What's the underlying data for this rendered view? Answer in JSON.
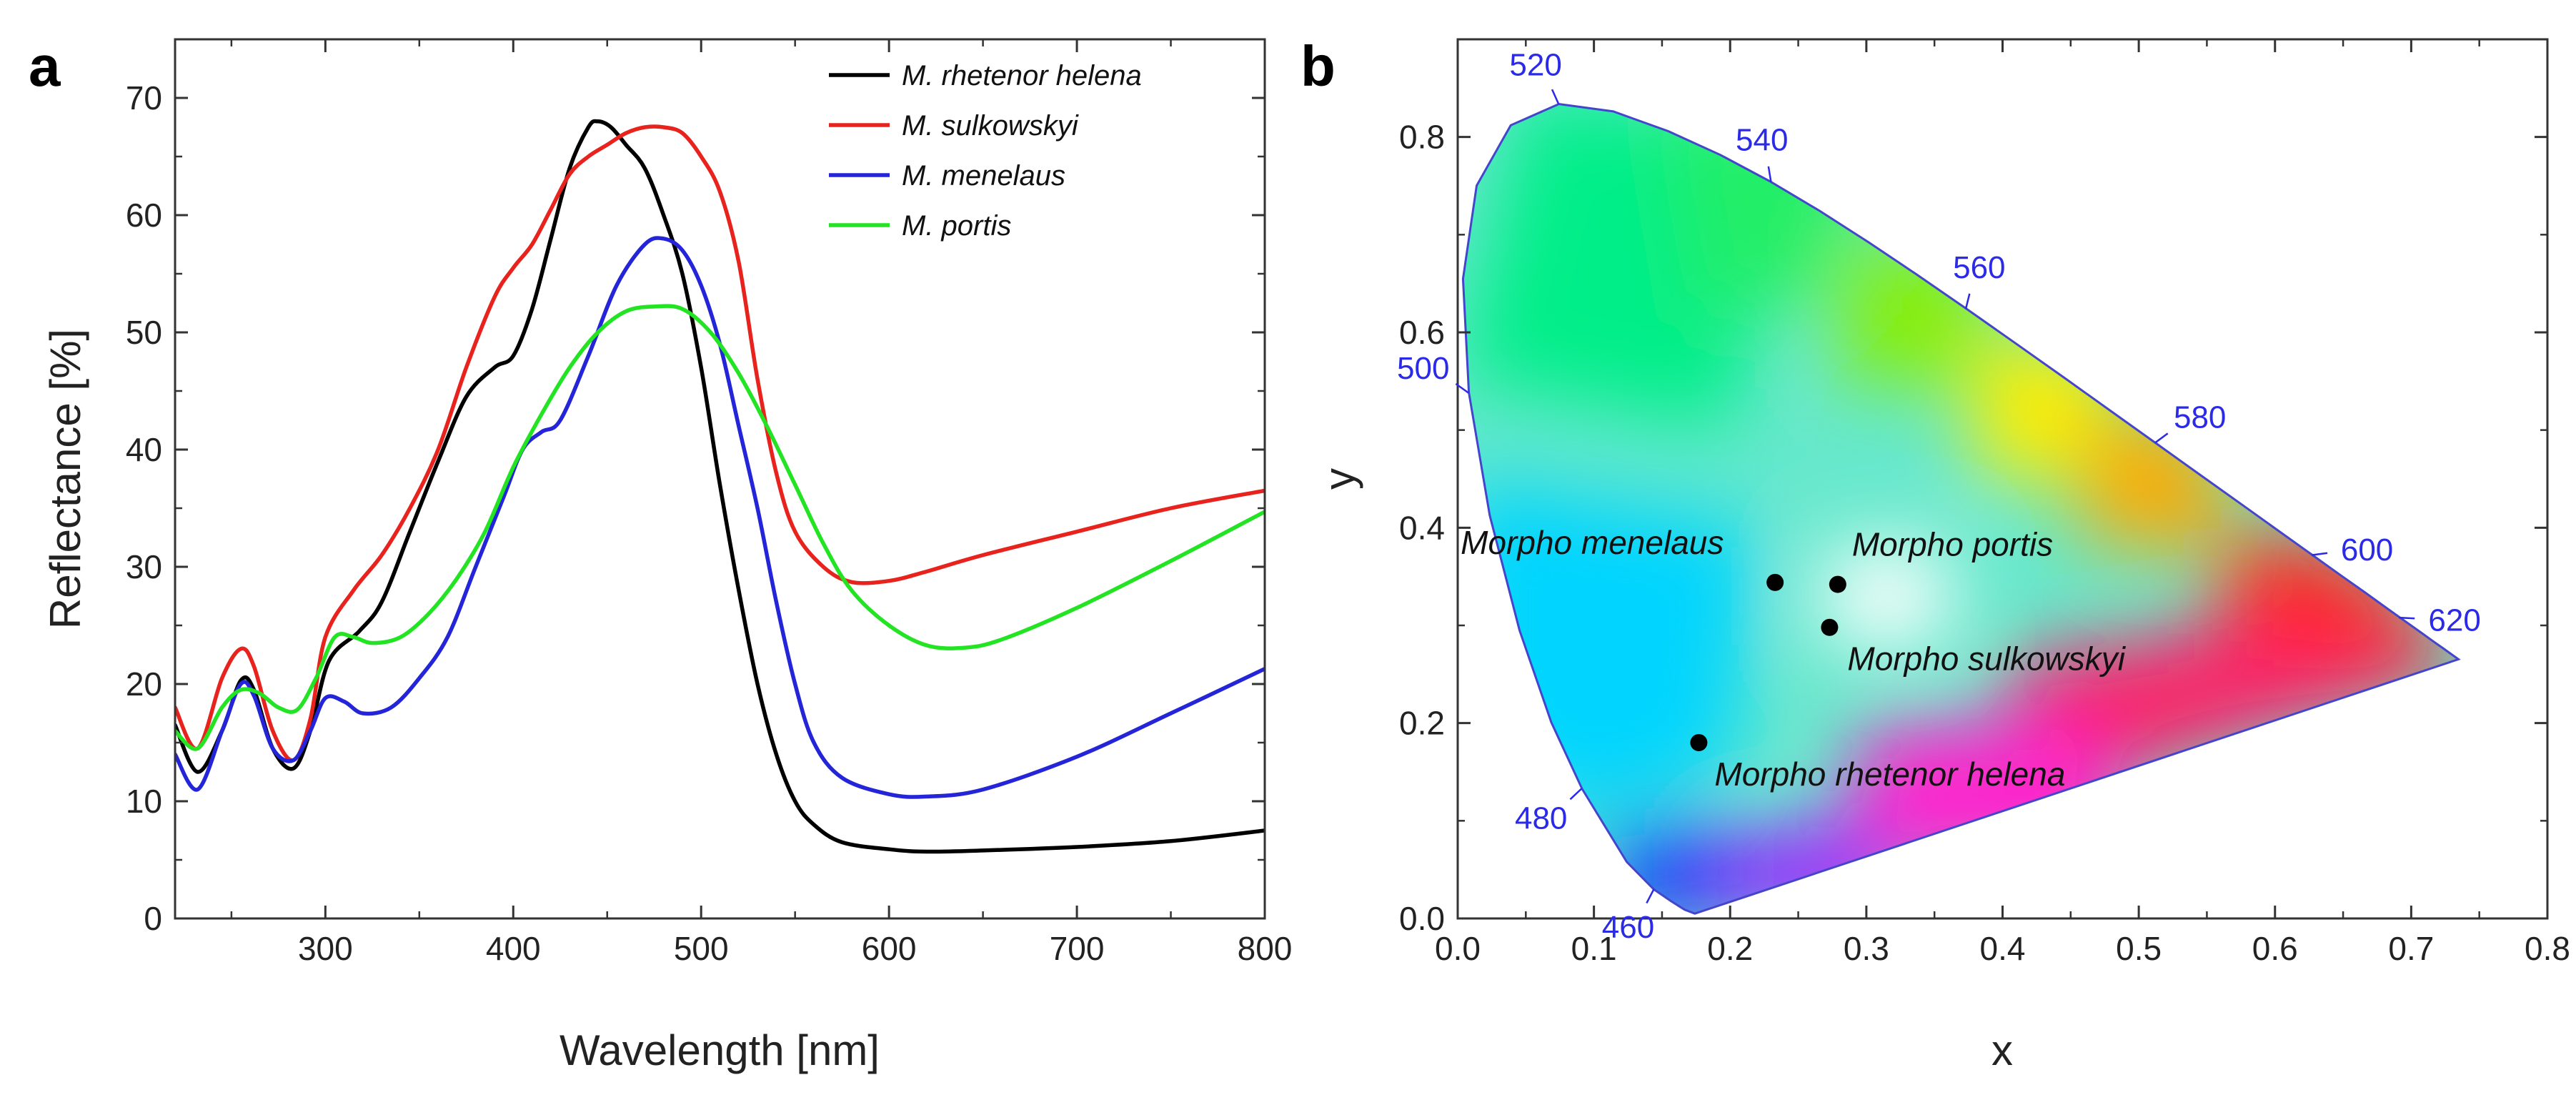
{
  "chart_data": [
    {
      "panel": "a",
      "type": "line",
      "title": "",
      "xlabel": "Wavelength [nm]",
      "ylabel": "Reflectance [%]",
      "xlim": [
        220,
        800
      ],
      "ylim": [
        0,
        75
      ],
      "xticks": [
        300,
        400,
        500,
        600,
        700,
        800
      ],
      "yticks": [
        0,
        10,
        20,
        30,
        40,
        50,
        60,
        70
      ],
      "grid": false,
      "legend_position": "top-right",
      "series": [
        {
          "name": "M. rhetenor helena",
          "color": "#000000",
          "points": [
            [
              220,
              16.5
            ],
            [
              232,
              12.5
            ],
            [
              245,
              16
            ],
            [
              255,
              20.3
            ],
            [
              262,
              19.5
            ],
            [
              272,
              14.5
            ],
            [
              283,
              12.8
            ],
            [
              292,
              16
            ],
            [
              302,
              22
            ],
            [
              318,
              24.5
            ],
            [
              330,
              27
            ],
            [
              345,
              33
            ],
            [
              360,
              39
            ],
            [
              375,
              44.5
            ],
            [
              390,
              47
            ],
            [
              400,
              48
            ],
            [
              410,
              52
            ],
            [
              420,
              58
            ],
            [
              430,
              64
            ],
            [
              440,
              67.5
            ],
            [
              445,
              68
            ],
            [
              452,
              67.5
            ],
            [
              460,
              66
            ],
            [
              470,
              64
            ],
            [
              480,
              60
            ],
            [
              490,
              55
            ],
            [
              500,
              47
            ],
            [
              510,
              37
            ],
            [
              520,
              28
            ],
            [
              530,
              20
            ],
            [
              540,
              14
            ],
            [
              550,
              10
            ],
            [
              560,
              8
            ],
            [
              575,
              6.5
            ],
            [
              600,
              5.9
            ],
            [
              620,
              5.7
            ],
            [
              650,
              5.8
            ],
            [
              700,
              6.1
            ],
            [
              750,
              6.6
            ],
            [
              800,
              7.5
            ]
          ]
        },
        {
          "name": "M. sulkowskyi",
          "color": "#e8231e",
          "points": [
            [
              220,
              18
            ],
            [
              232,
              14.5
            ],
            [
              245,
              20.5
            ],
            [
              255,
              23
            ],
            [
              262,
              21.5
            ],
            [
              272,
              16
            ],
            [
              283,
              13.5
            ],
            [
              292,
              17
            ],
            [
              300,
              24
            ],
            [
              315,
              28
            ],
            [
              330,
              31
            ],
            [
              345,
              35
            ],
            [
              360,
              40
            ],
            [
              375,
              47
            ],
            [
              390,
              53
            ],
            [
              400,
              55.5
            ],
            [
              410,
              57.5
            ],
            [
              420,
              60.5
            ],
            [
              430,
              63.5
            ],
            [
              440,
              65
            ],
            [
              450,
              66
            ],
            [
              460,
              67
            ],
            [
              470,
              67.5
            ],
            [
              480,
              67.5
            ],
            [
              490,
              67
            ],
            [
              500,
              65
            ],
            [
              510,
              62
            ],
            [
              520,
              56
            ],
            [
              530,
              46
            ],
            [
              540,
              38
            ],
            [
              550,
              33
            ],
            [
              565,
              30
            ],
            [
              580,
              28.7
            ],
            [
              600,
              28.8
            ],
            [
              620,
              29.6
            ],
            [
              650,
              31
            ],
            [
              700,
              33
            ],
            [
              750,
              35
            ],
            [
              800,
              36.5
            ]
          ]
        },
        {
          "name": "M. menelaus",
          "color": "#2424d8",
          "points": [
            [
              220,
              14
            ],
            [
              232,
              11
            ],
            [
              245,
              16
            ],
            [
              255,
              20
            ],
            [
              262,
              19
            ],
            [
              272,
              14.5
            ],
            [
              283,
              13.5
            ],
            [
              292,
              16
            ],
            [
              300,
              18.8
            ],
            [
              310,
              18.5
            ],
            [
              320,
              17.5
            ],
            [
              335,
              18
            ],
            [
              350,
              20.5
            ],
            [
              365,
              24
            ],
            [
              380,
              30
            ],
            [
              395,
              36
            ],
            [
              405,
              40
            ],
            [
              415,
              41.5
            ],
            [
              425,
              42.5
            ],
            [
              440,
              48
            ],
            [
              455,
              54
            ],
            [
              470,
              57.5
            ],
            [
              480,
              58
            ],
            [
              490,
              57
            ],
            [
              500,
              54
            ],
            [
              510,
              49
            ],
            [
              520,
              42
            ],
            [
              530,
              35
            ],
            [
              540,
              27
            ],
            [
              550,
              20
            ],
            [
              560,
              15
            ],
            [
              575,
              12
            ],
            [
              600,
              10.6
            ],
            [
              620,
              10.4
            ],
            [
              650,
              11
            ],
            [
              700,
              13.8
            ],
            [
              750,
              17.5
            ],
            [
              800,
              21.3
            ]
          ]
        },
        {
          "name": "M. portis",
          "color": "#22e422",
          "points": [
            [
              220,
              16
            ],
            [
              232,
              14.5
            ],
            [
              245,
              18
            ],
            [
              255,
              19.5
            ],
            [
              265,
              19.2
            ],
            [
              275,
              18
            ],
            [
              285,
              17.8
            ],
            [
              295,
              20.5
            ],
            [
              305,
              24
            ],
            [
              315,
              24
            ],
            [
              325,
              23.5
            ],
            [
              340,
              24
            ],
            [
              355,
              26
            ],
            [
              370,
              29
            ],
            [
              385,
              33
            ],
            [
              400,
              38.5
            ],
            [
              415,
              43
            ],
            [
              430,
              47
            ],
            [
              445,
              50
            ],
            [
              460,
              51.8
            ],
            [
              475,
              52.2
            ],
            [
              490,
              52
            ],
            [
              505,
              50
            ],
            [
              520,
              46.5
            ],
            [
              535,
              42
            ],
            [
              550,
              37
            ],
            [
              565,
              32
            ],
            [
              580,
              28
            ],
            [
              600,
              25
            ],
            [
              620,
              23.3
            ],
            [
              640,
              23.1
            ],
            [
              660,
              23.8
            ],
            [
              700,
              26.5
            ],
            [
              750,
              30.5
            ],
            [
              800,
              34.7
            ]
          ]
        }
      ]
    },
    {
      "panel": "b",
      "type": "scatter",
      "title": "",
      "xlabel": "x",
      "ylabel": "y",
      "xlim": [
        0.0,
        0.8
      ],
      "ylim": [
        0.0,
        0.9
      ],
      "xticks": [
        0.0,
        0.1,
        0.2,
        0.3,
        0.4,
        0.5,
        0.6,
        0.7,
        0.8
      ],
      "yticks": [
        0.0,
        0.2,
        0.4,
        0.6,
        0.8
      ],
      "grid": false,
      "background": "CIE 1931 chromaticity diagram",
      "locus_wavelength_labels": [
        {
          "label": "460",
          "x": 0.144,
          "y": 0.03
        },
        {
          "label": "480",
          "x": 0.091,
          "y": 0.133
        },
        {
          "label": "500",
          "x": 0.008,
          "y": 0.538
        },
        {
          "label": "520",
          "x": 0.074,
          "y": 0.834
        },
        {
          "label": "540",
          "x": 0.23,
          "y": 0.754
        },
        {
          "label": "560",
          "x": 0.373,
          "y": 0.624
        },
        {
          "label": "580",
          "x": 0.512,
          "y": 0.487
        },
        {
          "label": "600",
          "x": 0.627,
          "y": 0.372
        },
        {
          "label": "620",
          "x": 0.691,
          "y": 0.308
        }
      ],
      "points": [
        {
          "name": "Morpho menelaus",
          "x": 0.233,
          "y": 0.344
        },
        {
          "name": "Morpho portis",
          "x": 0.279,
          "y": 0.342
        },
        {
          "name": "Morpho sulkowskyi",
          "x": 0.273,
          "y": 0.298
        },
        {
          "name": "Morpho rhetenor helena",
          "x": 0.177,
          "y": 0.18
        }
      ],
      "locus": [
        [
          0.1741,
          0.005
        ],
        [
          0.1666,
          0.0089
        ],
        [
          0.1566,
          0.0177
        ],
        [
          0.144,
          0.0297
        ],
        [
          0.1241,
          0.0578
        ],
        [
          0.0913,
          0.1327
        ],
        [
          0.0687,
          0.2007
        ],
        [
          0.0454,
          0.295
        ],
        [
          0.0235,
          0.4127
        ],
        [
          0.0082,
          0.5384
        ],
        [
          0.0039,
          0.6548
        ],
        [
          0.0139,
          0.7502
        ],
        [
          0.0389,
          0.812
        ],
        [
          0.0743,
          0.8338
        ],
        [
          0.1142,
          0.8262
        ],
        [
          0.1547,
          0.8059
        ],
        [
          0.1929,
          0.7816
        ],
        [
          0.2296,
          0.7543
        ],
        [
          0.2658,
          0.7243
        ],
        [
          0.3016,
          0.6923
        ],
        [
          0.3373,
          0.6589
        ],
        [
          0.3731,
          0.6245
        ],
        [
          0.4087,
          0.5896
        ],
        [
          0.4441,
          0.5547
        ],
        [
          0.4788,
          0.5202
        ],
        [
          0.5125,
          0.4866
        ],
        [
          0.5448,
          0.4544
        ],
        [
          0.5752,
          0.4242
        ],
        [
          0.6029,
          0.3965
        ],
        [
          0.627,
          0.3725
        ],
        [
          0.6482,
          0.3514
        ],
        [
          0.6658,
          0.334
        ],
        [
          0.6801,
          0.3197
        ],
        [
          0.6915,
          0.3083
        ],
        [
          0.7006,
          0.2993
        ],
        [
          0.7079,
          0.292
        ],
        [
          0.714,
          0.2859
        ],
        [
          0.719,
          0.2809
        ],
        [
          0.723,
          0.277
        ],
        [
          0.726,
          0.274
        ],
        [
          0.7347,
          0.2653
        ]
      ]
    }
  ],
  "panel_labels": {
    "a": "a",
    "b": "b"
  },
  "colors": {
    "axis": "#333333",
    "locus_edge": "#4444cc",
    "wavelength_label": "#2a2ae8"
  }
}
